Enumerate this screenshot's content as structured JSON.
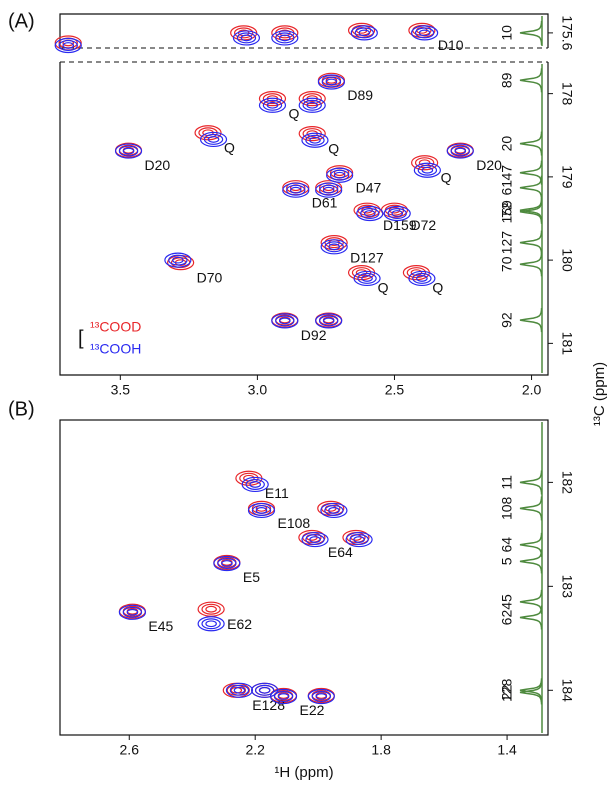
{
  "chart_data": [
    {
      "type": "contour",
      "panel": "(A)",
      "xlim": [
        3.72,
        1.94
      ],
      "ylim": [
        177.62,
        181.38
      ],
      "xticks": [
        3.5,
        {
          "value": 3,
          "label": "3.0"
        },
        2.5,
        {
          "value": 2,
          "label": "2.0"
        }
      ],
      "yticks": [
        178,
        179,
        180,
        181
      ],
      "strip_ylim": [
        175.45,
        175.72
      ],
      "strip_yticks": [
        175.6
      ],
      "ylabel": "¹³C (ppm)",
      "series": [
        {
          "name": "¹³COOD",
          "color": "#e8262a",
          "x": [
            3.69,
            3.05,
            2.9,
            2.62,
            2.4,
            2.73,
            2.945,
            2.8,
            3.47,
            3.18,
            2.8,
            2.26,
            2.7,
            2.39,
            2.86,
            2.74,
            2.6,
            2.5,
            2.72,
            2.62,
            2.42,
            3.28,
            2.9,
            2.74
          ],
          "y": [
            175.68,
            175.6,
            175.6,
            175.58,
            175.58,
            177.84,
            178.06,
            178.06,
            178.68,
            178.47,
            178.48,
            178.68,
            178.95,
            178.83,
            179.13,
            179.13,
            179.4,
            179.4,
            179.79,
            180.15,
            180.15,
            180.03,
            180.72,
            180.72
          ],
          "labels": [
            null,
            null,
            null,
            null,
            "D10",
            "D89",
            "Q",
            null,
            "D20",
            "Q",
            "Q",
            "D20",
            "D47",
            "Q",
            "D61",
            null,
            "D159",
            "D72",
            "D127",
            "Q",
            "Q",
            "D70",
            "D92",
            null
          ]
        },
        {
          "name": "¹³COOH",
          "color": "#2a2af0",
          "x": [
            3.69,
            3.04,
            2.9,
            2.61,
            2.39,
            2.73,
            2.945,
            2.8,
            3.47,
            3.16,
            2.79,
            2.26,
            2.7,
            2.38,
            2.86,
            2.74,
            2.59,
            2.49,
            2.72,
            2.6,
            2.4,
            3.29,
            2.9,
            2.74
          ],
          "y": [
            175.7,
            175.64,
            175.64,
            175.6,
            175.6,
            177.86,
            178.14,
            178.14,
            178.69,
            178.55,
            178.56,
            178.69,
            178.98,
            178.92,
            179.16,
            179.16,
            179.44,
            179.44,
            179.84,
            180.22,
            180.22,
            180.0,
            180.73,
            180.73
          ]
        }
      ],
      "projection": {
        "color": "#4e8a3e",
        "labels": [
          "10",
          "89",
          "20",
          "47",
          "61",
          "72",
          "159",
          "127",
          "70",
          "92"
        ],
        "y": [
          175.6,
          177.84,
          178.6,
          178.95,
          179.13,
          179.4,
          179.42,
          179.79,
          180.05,
          180.72
        ]
      }
    },
    {
      "type": "contour",
      "panel": "(B)",
      "xlim": [
        2.82,
        1.27
      ],
      "ylim": [
        181.4,
        184.43
      ],
      "xticks": [
        2.6,
        2.2,
        1.8,
        1.4
      ],
      "yticks": [
        182,
        183,
        184
      ],
      "xlabel": "¹H (ppm)",
      "series": [
        {
          "name": "¹³COOD",
          "color": "#e8262a",
          "x": [
            2.22,
            2.18,
            1.96,
            2.02,
            1.88,
            2.29,
            2.59,
            2.34,
            2.26,
            2.17,
            2.11,
            1.99
          ],
          "y": [
            181.96,
            182.25,
            182.25,
            182.53,
            182.53,
            182.77,
            183.24,
            183.22,
            184.0,
            184.0,
            184.05,
            184.05
          ],
          "labels": [
            "E11",
            "E108",
            null,
            "E64",
            null,
            "E5",
            "E45",
            "E62",
            "E128",
            null,
            "E22",
            null
          ]
        },
        {
          "name": "¹³COOH",
          "color": "#2a2af0",
          "x": [
            2.2,
            2.18,
            1.95,
            2.01,
            1.87,
            2.29,
            2.59,
            2.34,
            2.25,
            2.17,
            2.11,
            1.99
          ],
          "y": [
            182.02,
            182.27,
            182.27,
            182.55,
            182.55,
            182.78,
            183.25,
            183.36,
            184.0,
            184.0,
            184.06,
            184.06
          ]
        }
      ],
      "projection": {
        "color": "#4e8a3e",
        "labels": [
          "11",
          "108",
          "64",
          "5",
          "45",
          "62",
          "128",
          "22"
        ],
        "y": [
          182.0,
          182.25,
          182.6,
          182.76,
          183.15,
          183.3,
          184.0,
          184.02
        ]
      }
    }
  ]
}
